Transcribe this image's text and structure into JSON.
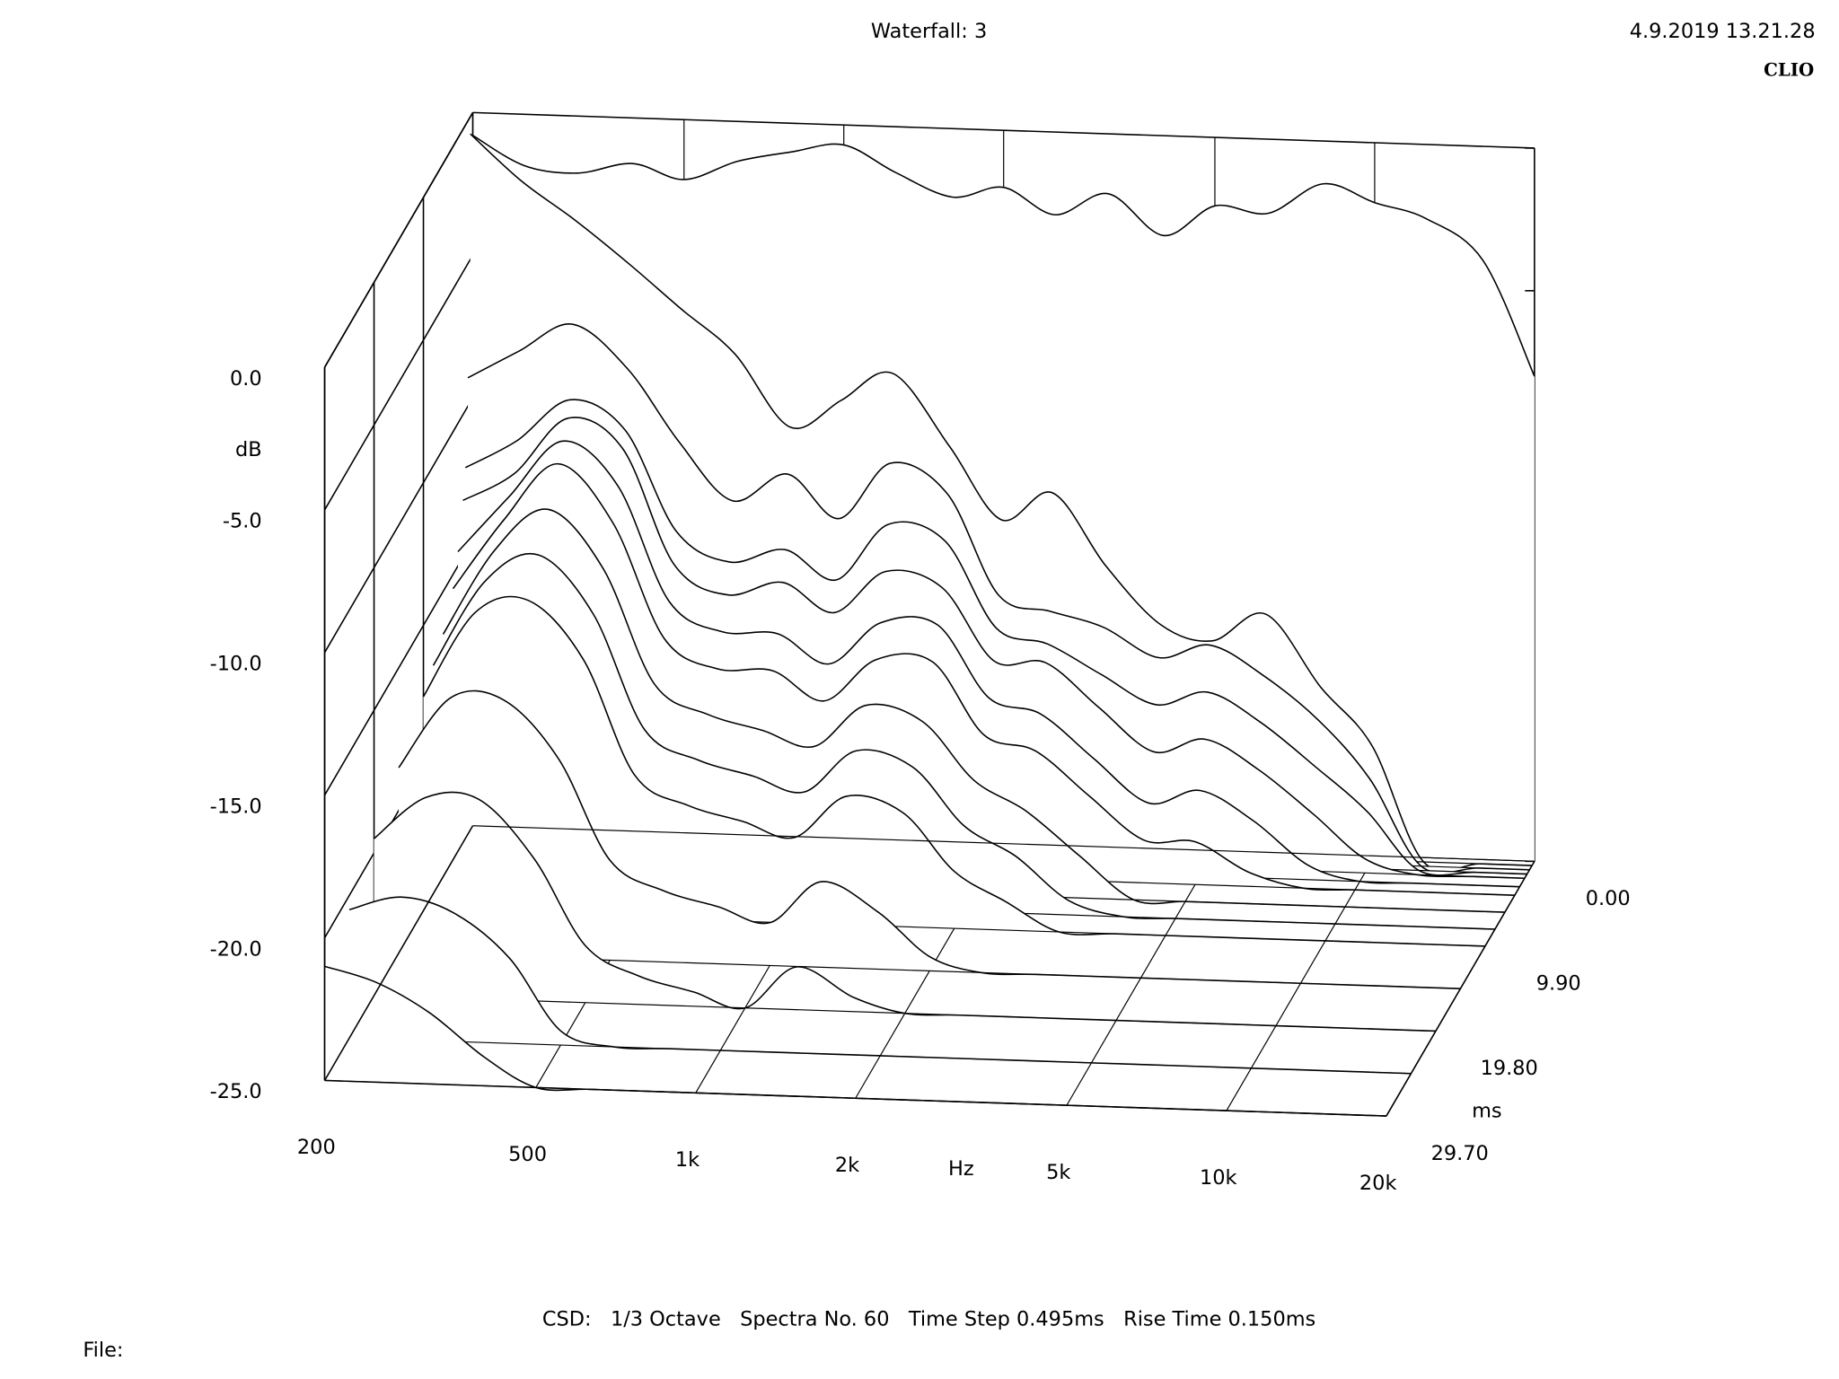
{
  "header": {
    "title": "Waterfall: 3",
    "date": "4.9.2019 13.21.28",
    "brand": "CLIO"
  },
  "chart_data": {
    "type": "waterfall",
    "xlabel": "Hz",
    "ylabel": "dB",
    "zlabel": "ms",
    "xscale": "log",
    "xlim": [
      200,
      20000
    ],
    "xticks": [
      200,
      500,
      {
        "value": 1000,
        "label": "1k"
      },
      {
        "value": 2000,
        "label": "2k"
      },
      {
        "value": 5000,
        "label": "5k"
      },
      {
        "value": 10000,
        "label": "10k"
      },
      {
        "value": 20000,
        "label": "20k"
      }
    ],
    "ylim": [
      -25,
      0
    ],
    "yticks": [
      {
        "value": 0,
        "label": "0.0"
      },
      {
        "value": -5,
        "label": "-5.0"
      },
      {
        "value": -10,
        "label": "-10.0"
      },
      {
        "value": -15,
        "label": "-15.0"
      },
      {
        "value": -20,
        "label": "-20.0"
      },
      {
        "value": -25,
        "label": "-25.0"
      }
    ],
    "zlim": [
      0,
      29.7
    ],
    "zticks": [
      {
        "value": 0,
        "label": "0.00"
      },
      {
        "value": 9.9,
        "label": "9.90"
      },
      {
        "value": 19.8,
        "label": "19.80"
      },
      {
        "value": 29.7,
        "label": "29.70"
      }
    ],
    "color": "#000000",
    "x": [
      200,
      250,
      315,
      400,
      500,
      630,
      800,
      1000,
      1250,
      1600,
      2000,
      2500,
      3150,
      4000,
      5000,
      6300,
      8000,
      10000,
      12500,
      16000,
      20000
    ],
    "slices": [
      {
        "time": 0,
        "values": [
          -0.8,
          -1.8,
          -2.0,
          -1.6,
          -2.1,
          -1.4,
          -1.0,
          -0.7,
          -1.6,
          -2.4,
          -2.0,
          -2.9,
          -2.1,
          -3.5,
          -2.4,
          -2.6,
          -1.5,
          -2.1,
          -2.6,
          -4.0,
          -8.0
        ]
      },
      {
        "time": 0.495,
        "values": [
          -0.6,
          -2.2,
          -3.5,
          -5,
          -6.5,
          -8,
          -10.5,
          -9.5,
          -8.5,
          -11,
          -13.5,
          -12.5,
          -15,
          -17,
          -17.5,
          -16.5,
          -19,
          -21,
          -25,
          -25,
          -25
        ]
      },
      {
        "time": 0.99,
        "values": [
          -9,
          -8,
          -7,
          -8.5,
          -11,
          -13,
          -12,
          -13.5,
          -11.5,
          -12.5,
          -16,
          -16.5,
          -17,
          -18,
          -17.5,
          -18.5,
          -20,
          -22,
          -25,
          -25,
          -25
        ]
      },
      {
        "time": 1.485,
        "values": [
          -12,
          -11,
          -9.5,
          -10.5,
          -14,
          -15,
          -14.5,
          -15.5,
          -13.5,
          -14,
          -17,
          -17.5,
          -18.5,
          -19.5,
          -19,
          -20,
          -21.5,
          -23,
          -25,
          -25,
          -25
        ]
      },
      {
        "time": 1.98,
        "values": [
          -13,
          -12,
          -10,
          -11,
          -15,
          -16,
          -15.5,
          -16.5,
          -15,
          -15.5,
          -18,
          -18,
          -19.5,
          -21,
          -20.5,
          -21.5,
          -23,
          -24.5,
          -25,
          -25,
          -25
        ]
      },
      {
        "time": 2.97,
        "values": [
          -14.5,
          -12.5,
          -10.5,
          -12,
          -16,
          -17,
          -17,
          -18,
          -16.5,
          -16.5,
          -19,
          -19.5,
          -21,
          -22.5,
          -22,
          -23,
          -24.5,
          -25,
          -25,
          -25,
          -25
        ]
      },
      {
        "time": 3.96,
        "values": [
          -15.5,
          -13,
          -11,
          -13,
          -17,
          -18,
          -18,
          -19,
          -17.5,
          -17.5,
          -20,
          -20.5,
          -22,
          -23.5,
          -23.5,
          -24.5,
          -25,
          -25,
          -25,
          -25,
          -25
        ]
      },
      {
        "time": 5.94,
        "values": [
          -16.5,
          -13.5,
          -12,
          -14,
          -18,
          -19,
          -19.5,
          -20,
          -18.5,
          -19,
          -21,
          -22,
          -23.5,
          -25,
          -25,
          -25,
          -25,
          -25,
          -25,
          -25,
          -25
        ]
      },
      {
        "time": 7.92,
        "values": [
          -17,
          -14,
          -13,
          -15,
          -19,
          -20,
          -20.5,
          -21,
          -19.5,
          -20,
          -22,
          -23,
          -24.5,
          -25,
          -25,
          -25,
          -25,
          -25,
          -25,
          -25,
          -25
        ]
      },
      {
        "time": 9.9,
        "values": [
          -17.5,
          -14.5,
          -14,
          -16,
          -20,
          -21,
          -21.5,
          -22,
          -20.5,
          -21,
          -23,
          -24,
          -25,
          -25,
          -25,
          -25,
          -25,
          -25,
          -25,
          -25,
          -25
        ]
      },
      {
        "time": 14.85,
        "values": [
          -18.5,
          -16,
          -16,
          -18,
          -21.5,
          -22.5,
          -23,
          -23.5,
          -22,
          -23,
          -24.5,
          -25,
          -25,
          -25,
          -25,
          -25,
          -25,
          -25,
          -25,
          -25,
          -25
        ]
      },
      {
        "time": 19.8,
        "values": [
          -19.5,
          -18,
          -18,
          -20,
          -23,
          -24,
          -24.5,
          -25,
          -23.5,
          -24.5,
          -25,
          -25,
          -25,
          -25,
          -25,
          -25,
          -25,
          -25,
          -25,
          -25,
          -25
        ]
      },
      {
        "time": 24.75,
        "values": [
          -20.5,
          -20,
          -20.5,
          -22,
          -24.5,
          -25,
          -25,
          -25,
          -25,
          -25,
          -25,
          -25,
          -25,
          -25,
          -25,
          -25,
          -25,
          -25,
          -25,
          -25,
          -25
        ]
      },
      {
        "time": 29.7,
        "values": [
          -21,
          -21.5,
          -22.5,
          -24,
          -25,
          -25,
          -25,
          -25,
          -25,
          -25,
          -25,
          -25,
          -25,
          -25,
          -25,
          -25,
          -25,
          -25,
          -25,
          -25,
          -25
        ]
      }
    ]
  },
  "footer": {
    "info": "CSD:   1/3 Octave   Spectra No. 60   Time Step 0.495ms   Rise Time 0.150ms",
    "file_label": "File:"
  }
}
